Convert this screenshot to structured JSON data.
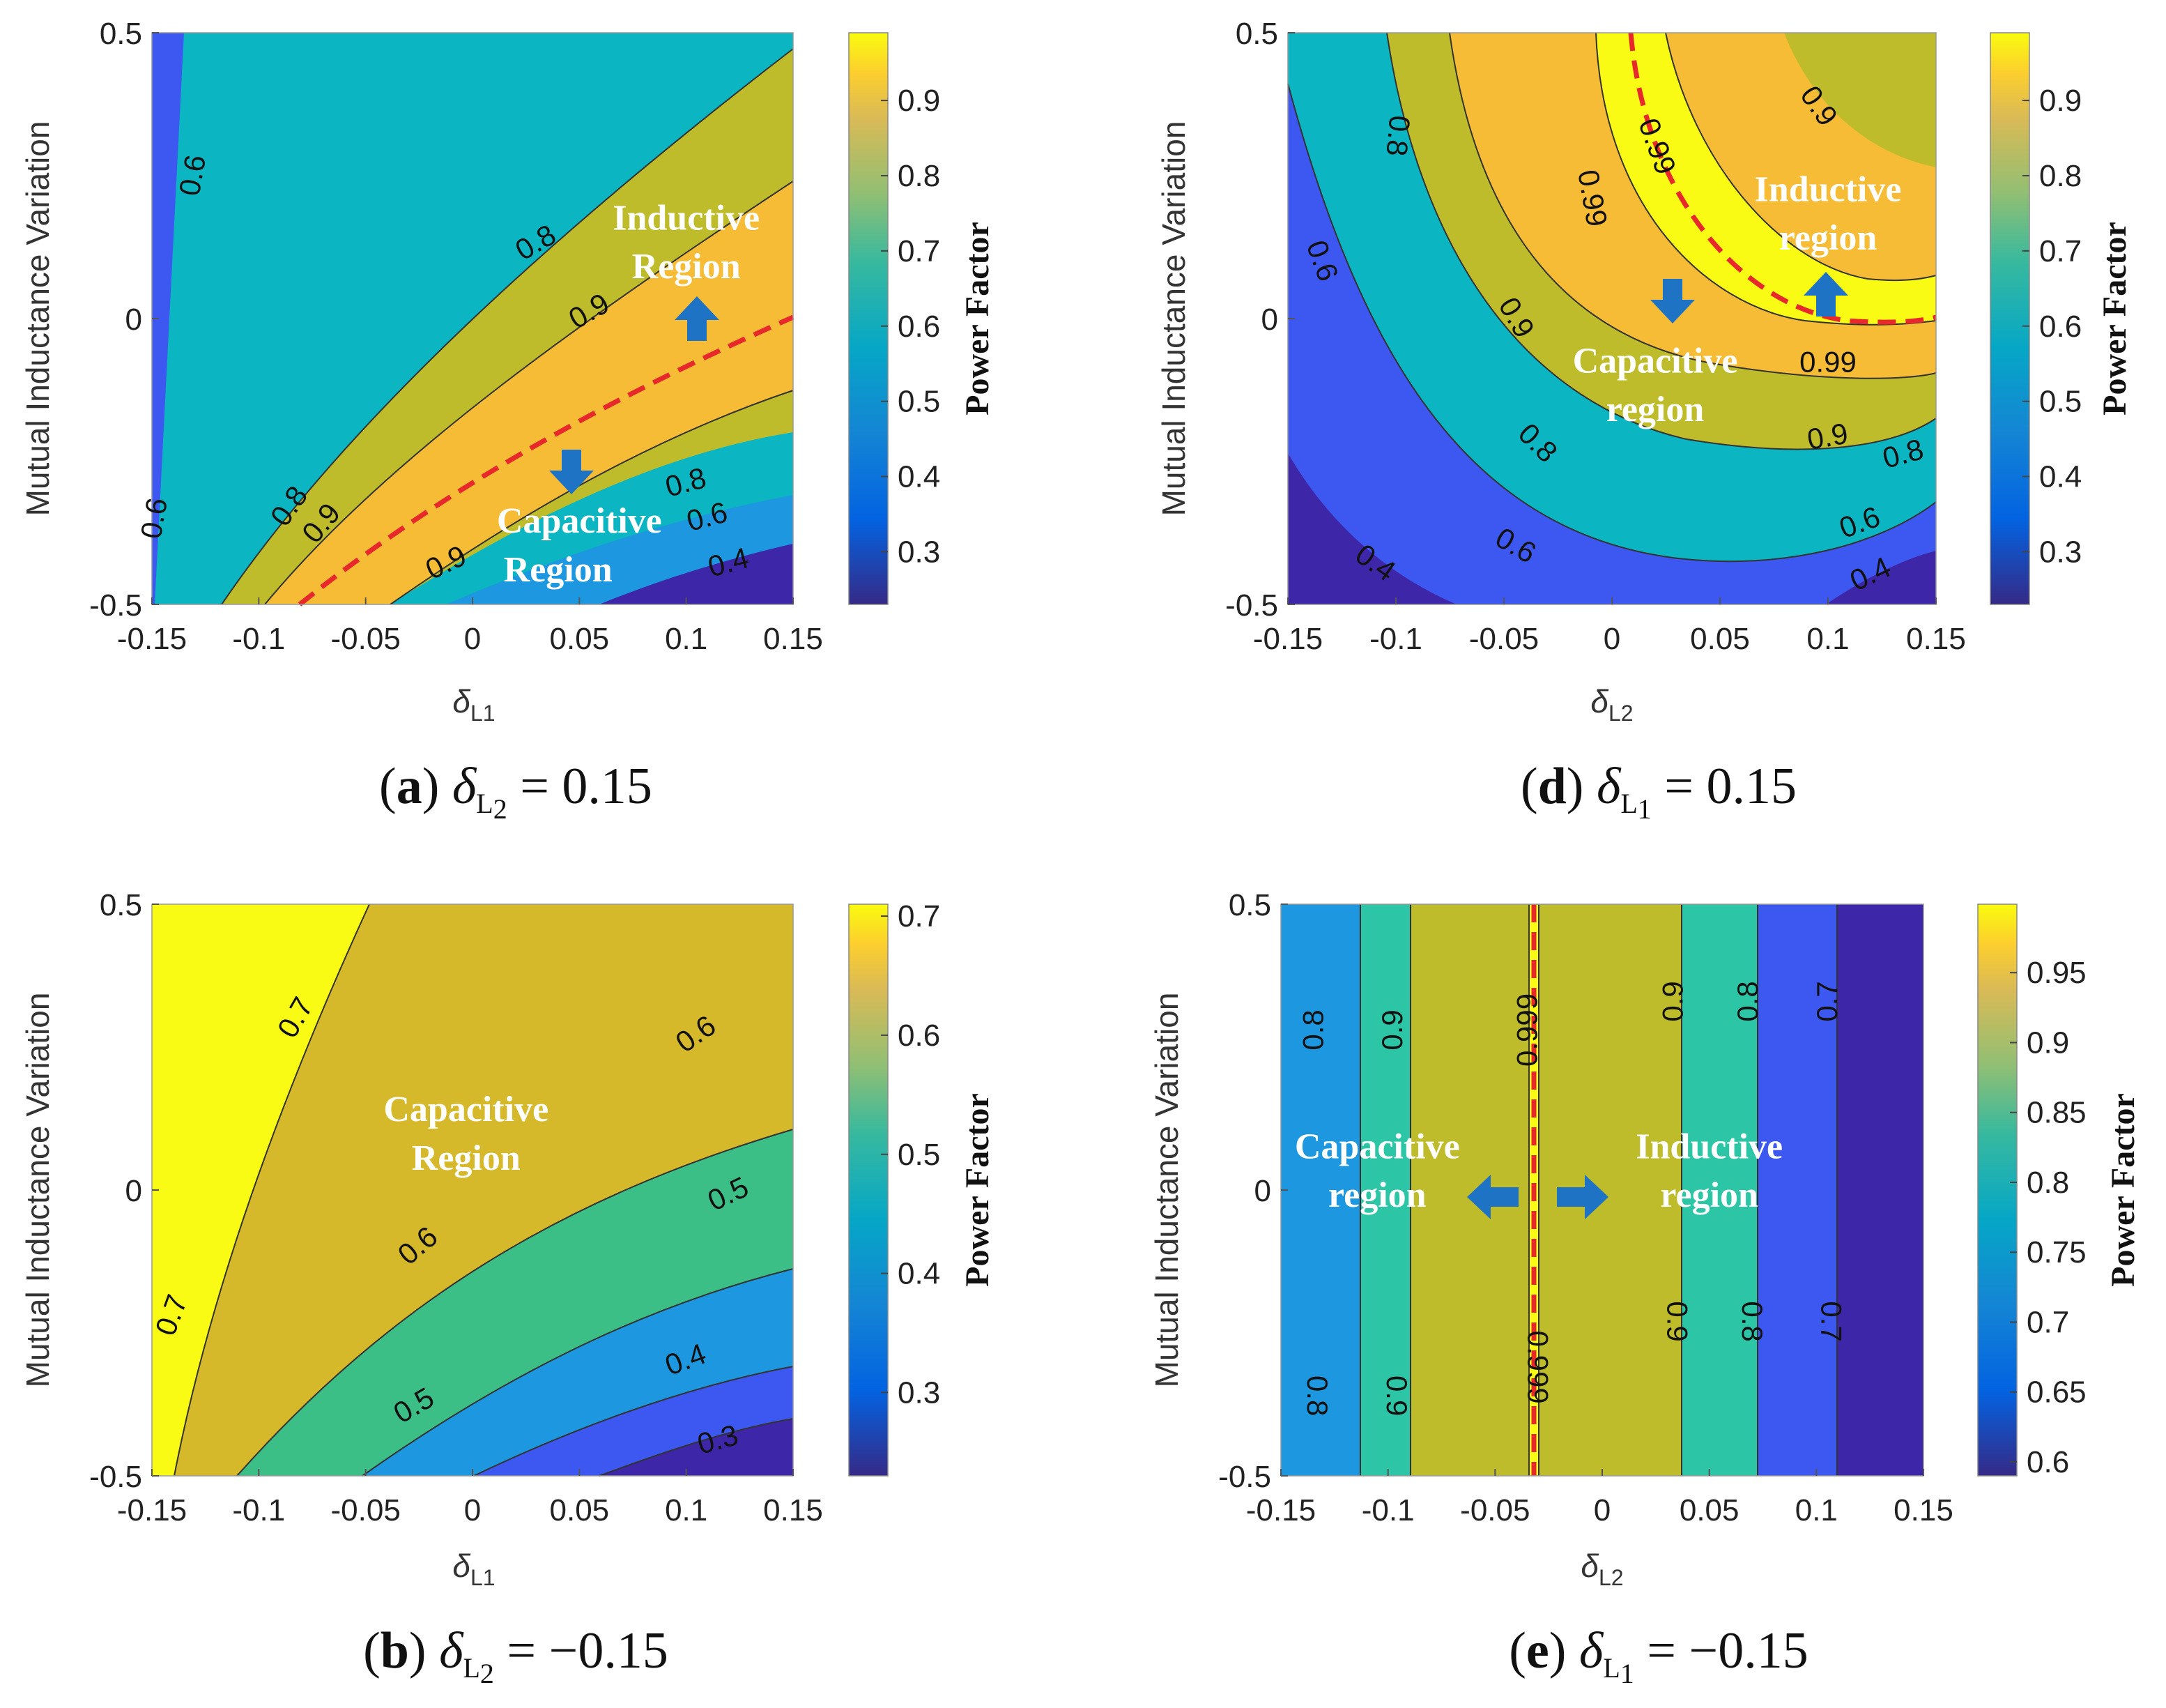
{
  "chart_data": [
    {
      "id": "a",
      "type": "contour",
      "caption": {
        "letter": "a",
        "fixed_var": "δ",
        "fixed_sub": "L2",
        "rhs": "= 0.15"
      },
      "xlabel": "δL1",
      "ylabel": "Mutual Inductance Variation",
      "colorbar_label": "Power Factor",
      "xlim": [
        -0.15,
        0.15
      ],
      "ylim": [
        -0.5,
        0.5
      ],
      "xticks": [
        "-0.15",
        "-0.1",
        "-0.05",
        "0",
        "0.05",
        "0.1",
        "0.15"
      ],
      "yticks": [
        "-0.5",
        "0",
        "0.5"
      ],
      "cbar_range": [
        0.23,
        0.99
      ],
      "cbar_ticks": [
        "0.3",
        "0.4",
        "0.5",
        "0.6",
        "0.7",
        "0.8",
        "0.9"
      ],
      "contour_labels": [
        {
          "text": "0.6",
          "x": -0.13,
          "y": 0.25,
          "rot": -80
        },
        {
          "text": "0.6",
          "x": -0.148,
          "y": -0.35,
          "rot": -80
        },
        {
          "text": "0.8",
          "x": 0.03,
          "y": 0.13,
          "rot": -30
        },
        {
          "text": "0.9",
          "x": 0.055,
          "y": 0.01,
          "rot": -30
        },
        {
          "text": "0.8",
          "x": -0.085,
          "y": -0.33,
          "rot": -55
        },
        {
          "text": "0.9",
          "x": -0.07,
          "y": -0.36,
          "rot": -50
        },
        {
          "text": "0.9",
          "x": -0.012,
          "y": -0.43,
          "rot": -25
        },
        {
          "text": "0.8",
          "x": 0.1,
          "y": -0.29,
          "rot": -15
        },
        {
          "text": "0.6",
          "x": 0.11,
          "y": -0.35,
          "rot": -15
        },
        {
          "text": "0.4",
          "x": 0.12,
          "y": -0.43,
          "rot": -15
        }
      ],
      "annotations": [
        {
          "text": "Inductive",
          "x": 0.1,
          "y": 0.17
        },
        {
          "text": "Region",
          "x": 0.1,
          "y": 0.085
        },
        {
          "text": "Capacitive",
          "x": 0.05,
          "y": -0.36
        },
        {
          "text": "Region",
          "x": 0.04,
          "y": -0.445
        }
      ]
    },
    {
      "id": "d",
      "type": "contour",
      "caption": {
        "letter": "d",
        "fixed_var": "δ",
        "fixed_sub": "L1",
        "rhs": "= 0.15"
      },
      "xlabel": "δL2",
      "ylabel": "Mutual Inductance Variation",
      "colorbar_label": "Power Factor",
      "xlim": [
        -0.15,
        0.15
      ],
      "ylim": [
        -0.5,
        0.5
      ],
      "xticks": [
        "-0.15",
        "-0.1",
        "-0.05",
        "0",
        "0.05",
        "0.1",
        "0.15"
      ],
      "yticks": [
        "-0.5",
        "0",
        "0.5"
      ],
      "cbar_range": [
        0.23,
        0.99
      ],
      "cbar_ticks": [
        "0.3",
        "0.4",
        "0.5",
        "0.6",
        "0.7",
        "0.8",
        "0.9"
      ],
      "contour_labels": [
        {
          "text": "0.8",
          "x": -0.1,
          "y": 0.32,
          "rot": 95
        },
        {
          "text": "0.9",
          "x": 0.095,
          "y": 0.37,
          "rot": 55
        },
        {
          "text": "0.99",
          "x": 0.02,
          "y": 0.3,
          "rot": 70
        },
        {
          "text": "0.99",
          "x": -0.01,
          "y": 0.21,
          "rot": 80
        },
        {
          "text": "0.6",
          "x": -0.135,
          "y": 0.1,
          "rot": 70
        },
        {
          "text": "0.9",
          "x": -0.045,
          "y": 0.0,
          "rot": 60
        },
        {
          "text": "0.8",
          "x": -0.035,
          "y": -0.22,
          "rot": 45
        },
        {
          "text": "0.6",
          "x": -0.045,
          "y": -0.4,
          "rot": 30
        },
        {
          "text": "0.4",
          "x": -0.11,
          "y": -0.43,
          "rot": 35
        },
        {
          "text": "0.99",
          "x": 0.1,
          "y": -0.08,
          "rot": 0
        },
        {
          "text": "0.9",
          "x": 0.1,
          "y": -0.21,
          "rot": -10
        },
        {
          "text": "0.8",
          "x": 0.135,
          "y": -0.24,
          "rot": -15
        },
        {
          "text": "0.6",
          "x": 0.115,
          "y": -0.36,
          "rot": -20
        },
        {
          "text": "0.4",
          "x": 0.12,
          "y": -0.45,
          "rot": -25
        }
      ],
      "annotations": [
        {
          "text": "Inductive",
          "x": 0.1,
          "y": 0.22
        },
        {
          "text": "region",
          "x": 0.1,
          "y": 0.135
        },
        {
          "text": "Capacitive",
          "x": 0.02,
          "y": -0.08
        },
        {
          "text": "region",
          "x": 0.02,
          "y": -0.165
        }
      ]
    },
    {
      "id": "b",
      "type": "contour",
      "caption": {
        "letter": "b",
        "fixed_var": "δ",
        "fixed_sub": "L2",
        "rhs": "= −0.15"
      },
      "xlabel": "δL1",
      "ylabel": "Mutual Inductance Variation",
      "colorbar_label": "Power Factor",
      "xlim": [
        -0.15,
        0.15
      ],
      "ylim": [
        -0.5,
        0.5
      ],
      "xticks": [
        "-0.15",
        "-0.1",
        "-0.05",
        "0",
        "0.05",
        "0.1",
        "0.15"
      ],
      "yticks": [
        "-0.5",
        "0",
        "0.5"
      ],
      "cbar_range": [
        0.23,
        0.71
      ],
      "cbar_ticks": [
        "0.3",
        "0.4",
        "0.5",
        "0.6",
        "0.7"
      ],
      "contour_labels": [
        {
          "text": "0.7",
          "x": -0.082,
          "y": 0.3,
          "rot": -60
        },
        {
          "text": "0.6",
          "x": 0.105,
          "y": 0.27,
          "rot": -35
        },
        {
          "text": "0.6",
          "x": -0.025,
          "y": -0.1,
          "rot": -40
        },
        {
          "text": "0.5",
          "x": 0.12,
          "y": -0.01,
          "rot": -25
        },
        {
          "text": "0.7",
          "x": -0.14,
          "y": -0.22,
          "rot": -70
        },
        {
          "text": "0.5",
          "x": -0.027,
          "y": -0.38,
          "rot": -30
        },
        {
          "text": "0.4",
          "x": 0.1,
          "y": -0.3,
          "rot": -20
        },
        {
          "text": "0.3",
          "x": 0.115,
          "y": -0.44,
          "rot": -15
        }
      ],
      "annotations": [
        {
          "text": "Capacitive",
          "x": -0.003,
          "y": 0.135
        },
        {
          "text": "Region",
          "x": -0.003,
          "y": 0.05
        }
      ]
    },
    {
      "id": "e",
      "type": "contour",
      "caption": {
        "letter": "e",
        "fixed_var": "δ",
        "fixed_sub": "L1",
        "rhs": "= −0.15"
      },
      "xlabel": "δL2",
      "ylabel": "Mutual Inductance Variation",
      "colorbar_label": "Power Factor",
      "xlim": [
        -0.15,
        0.15
      ],
      "ylim": [
        -0.5,
        0.5
      ],
      "xticks": [
        "-0.15",
        "-0.1",
        "-0.05",
        "0",
        "0.05",
        "0.1",
        "0.15"
      ],
      "yticks": [
        "-0.5",
        "0",
        "0.5"
      ],
      "cbar_range": [
        0.59,
        0.999
      ],
      "cbar_ticks": [
        "0.6",
        "0.65",
        "0.7",
        "0.75",
        "0.8",
        "0.85",
        "0.9",
        "0.95"
      ],
      "contour_labels": [
        {
          "text": "0.8",
          "x": -0.134,
          "y": 0.28,
          "rot": -90
        },
        {
          "text": "0.9",
          "x": -0.097,
          "y": 0.28,
          "rot": -90
        },
        {
          "text": "0.999",
          "x": -0.034,
          "y": 0.28,
          "rot": -90
        },
        {
          "text": "0.9",
          "x": 0.034,
          "y": 0.33,
          "rot": -90
        },
        {
          "text": "0.8",
          "x": 0.069,
          "y": 0.33,
          "rot": -90
        },
        {
          "text": "0.7",
          "x": 0.106,
          "y": 0.33,
          "rot": -90
        },
        {
          "text": "0.8",
          "x": -0.134,
          "y": -0.36,
          "rot": 90
        },
        {
          "text": "0.9",
          "x": -0.097,
          "y": -0.36,
          "rot": 90
        },
        {
          "text": "0.999",
          "x": -0.031,
          "y": -0.31,
          "rot": 90
        },
        {
          "text": "0.9",
          "x": 0.034,
          "y": -0.23,
          "rot": 90
        },
        {
          "text": "0.8",
          "x": 0.069,
          "y": -0.23,
          "rot": 90
        },
        {
          "text": "0.7",
          "x": 0.106,
          "y": -0.23,
          "rot": 90
        }
      ],
      "annotations": [
        {
          "text": "Capacitive",
          "x": -0.105,
          "y": 0.07
        },
        {
          "text": "region",
          "x": -0.105,
          "y": -0.015
        },
        {
          "text": "Inductive",
          "x": 0.05,
          "y": 0.07
        },
        {
          "text": "region",
          "x": 0.05,
          "y": -0.015
        }
      ]
    }
  ],
  "colors": {
    "c1": "#3e26a8",
    "c2": "#3d58f0",
    "c3": "#1d97df",
    "c4": "#0bb5c1",
    "c5": "#2cc6a6",
    "c6": "#3bbf86",
    "c7": "#bfbc2b",
    "c8": "#d6b92a",
    "c9": "#f7bc36",
    "c10": "#f9fb15",
    "dash": "#e8292b",
    "arrow": "#1f73c4"
  }
}
